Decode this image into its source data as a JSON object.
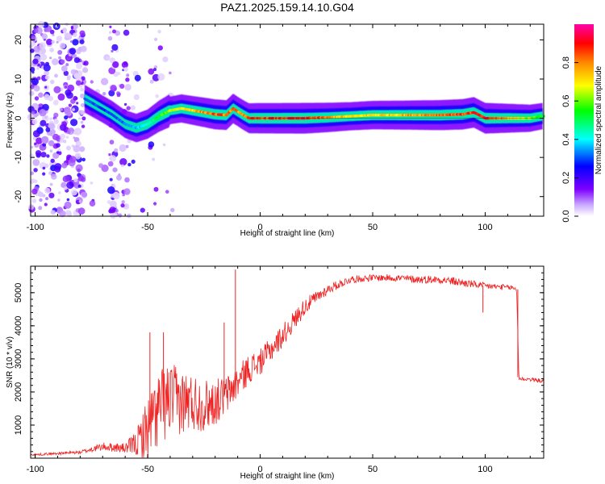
{
  "title": "PAZ1.2025.159.14.10.G04",
  "chart_data": [
    {
      "type": "heatmap",
      "xlabel": "Height of straight line (km)",
      "ylabel": "Frequency (Hz)",
      "xlim": [
        -102,
        126
      ],
      "ylim": [
        -25,
        24
      ],
      "x_ticks": [
        "-100",
        "-50",
        "0",
        "50",
        "100"
      ],
      "y_ticks": [
        "-20",
        "-10",
        "0",
        "10",
        "20"
      ],
      "grid": false,
      "colorbar": {
        "label": "Normalized spectral amplitude",
        "range": [
          0,
          1
        ],
        "ticks": [
          "0.0",
          "0.2",
          "0.4",
          "0.6",
          "0.8"
        ],
        "colormap": [
          "#ffffff",
          "#7f00ff",
          "#0000ff",
          "#00ffff",
          "#00ff00",
          "#ffff00",
          "#ff7f00",
          "#ff0000",
          "#ff00aa"
        ]
      },
      "ridge_frequency_hz": {
        "x": [
          -78,
          -72,
          -66,
          -60,
          -55,
          -50,
          -45,
          -40,
          -35,
          -30,
          -25,
          -20,
          -15,
          -12,
          -8,
          -5,
          0,
          10,
          20,
          30,
          40,
          50,
          60,
          70,
          80,
          90,
          95,
          100,
          110,
          120,
          125
        ],
        "y": [
          5,
          3,
          1,
          -1.5,
          -2.5,
          -1.5,
          0.5,
          2,
          2.5,
          2,
          1.5,
          1,
          0.8,
          2.5,
          1,
          0,
          0,
          0,
          0,
          0.2,
          0.5,
          0.8,
          0.8,
          0.8,
          0.8,
          1,
          1.5,
          0,
          0,
          0,
          0.5
        ]
      },
      "ridge_amplitude": {
        "x": [
          -78,
          -70,
          -60,
          -50,
          -40,
          -30,
          -20,
          -10,
          0,
          20,
          40,
          60,
          80,
          100,
          125
        ],
        "y": [
          0.35,
          0.3,
          0.35,
          0.45,
          0.7,
          0.8,
          0.9,
          0.85,
          0.92,
          0.95,
          0.75,
          0.8,
          0.9,
          0.95,
          0.6
        ]
      }
    },
    {
      "type": "line",
      "xlabel": "Height of straight line (km)",
      "ylabel": "SNR (10 * v/v)",
      "xlim": [
        -102,
        126
      ],
      "ylim": [
        0,
        5800
      ],
      "x_ticks": [
        "-100",
        "-50",
        "0",
        "50",
        "100"
      ],
      "y_ticks": [
        "1000",
        "2000",
        "3000",
        "4000",
        "5000"
      ],
      "grid": false,
      "color": "#ee2222",
      "envelope": {
        "x": [
          -102,
          -80,
          -70,
          -60,
          -55,
          -50,
          -45,
          -40,
          -35,
          -30,
          -25,
          -20,
          -15,
          -10,
          -5,
          0,
          10,
          20,
          30,
          40,
          50,
          60,
          70,
          80,
          90,
          100,
          112,
          114,
          115,
          120,
          126
        ],
        "mean": [
          100,
          180,
          350,
          300,
          450,
          900,
          1500,
          1800,
          1700,
          1700,
          1600,
          1700,
          1900,
          2300,
          2700,
          2900,
          3700,
          4600,
          5100,
          5400,
          5450,
          5450,
          5400,
          5400,
          5300,
          5200,
          5150,
          5100,
          2400,
          2380,
          2330
        ],
        "noise": [
          30,
          50,
          120,
          150,
          400,
          1000,
          1200,
          1100,
          1000,
          900,
          800,
          700,
          600,
          500,
          450,
          400,
          350,
          250,
          150,
          110,
          100,
          110,
          120,
          120,
          130,
          100,
          80,
          80,
          60,
          60,
          60
        ]
      },
      "spikes": [
        {
          "x": -49,
          "y": 3800
        },
        {
          "x": -43,
          "y": 3800
        },
        {
          "x": -11,
          "y": 5700
        },
        {
          "x": -16,
          "y": 4100
        },
        {
          "x": 99,
          "y": 4400
        }
      ]
    }
  ]
}
